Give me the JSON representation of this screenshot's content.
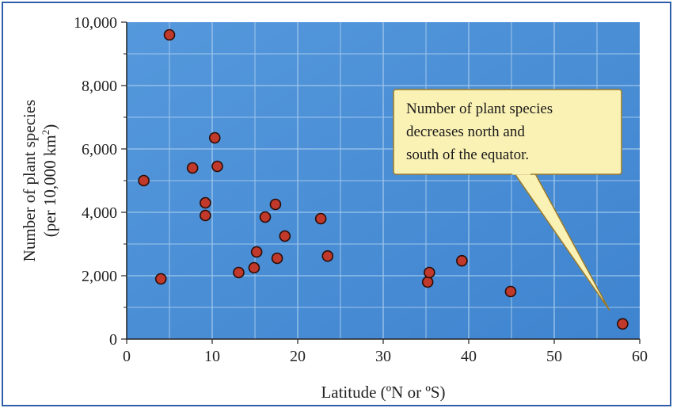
{
  "chart_data": {
    "type": "scatter",
    "title": "",
    "xlabel": "Latitude (ºN or ºS)",
    "ylabel_line1": "Number of plant species",
    "ylabel_line2_prefix": "(per 10,000 km",
    "ylabel_line2_sup": "2",
    "ylabel_line2_suffix": ")",
    "xlim": [
      0,
      60
    ],
    "ylim": [
      0,
      10000
    ],
    "x_ticks": [
      0,
      10,
      20,
      30,
      40,
      50,
      60
    ],
    "x_tick_labels": [
      "0",
      "10",
      "20",
      "30",
      "40",
      "50",
      "60"
    ],
    "y_ticks": [
      0,
      2000,
      4000,
      6000,
      8000,
      10000
    ],
    "y_tick_labels": [
      "0",
      "2,000",
      "4,000",
      "6,000",
      "8,000",
      "10,000"
    ],
    "grid": true,
    "points": [
      {
        "x": 5,
        "y": 9600
      },
      {
        "x": 2,
        "y": 5000
      },
      {
        "x": 4,
        "y": 1900
      },
      {
        "x": 7.7,
        "y": 5400
      },
      {
        "x": 9.2,
        "y": 4300
      },
      {
        "x": 9.2,
        "y": 3900
      },
      {
        "x": 10.3,
        "y": 6350
      },
      {
        "x": 10.6,
        "y": 5450
      },
      {
        "x": 13.1,
        "y": 2100
      },
      {
        "x": 14.9,
        "y": 2250
      },
      {
        "x": 15.2,
        "y": 2750
      },
      {
        "x": 16.2,
        "y": 3850
      },
      {
        "x": 17.4,
        "y": 4250
      },
      {
        "x": 17.6,
        "y": 2550
      },
      {
        "x": 18.5,
        "y": 3250
      },
      {
        "x": 22.7,
        "y": 3800
      },
      {
        "x": 23.5,
        "y": 2620
      },
      {
        "x": 35.2,
        "y": 1800
      },
      {
        "x": 35.4,
        "y": 2100
      },
      {
        "x": 39.2,
        "y": 2470
      },
      {
        "x": 44.9,
        "y": 1500
      },
      {
        "x": 58,
        "y": 480
      }
    ],
    "annotation": {
      "lines": [
        "Number of plant species",
        "decreases north and",
        "south of the equator."
      ]
    },
    "colors": {
      "plot_background": "#4b8fd6",
      "grid": "#9fc6ec",
      "marker_fill": "#c0392b",
      "marker_stroke": "#2a0d08",
      "callout_fill": "#faf1b4",
      "callout_stroke": "#9a7a2a",
      "frame": "#2f5fa8"
    }
  }
}
